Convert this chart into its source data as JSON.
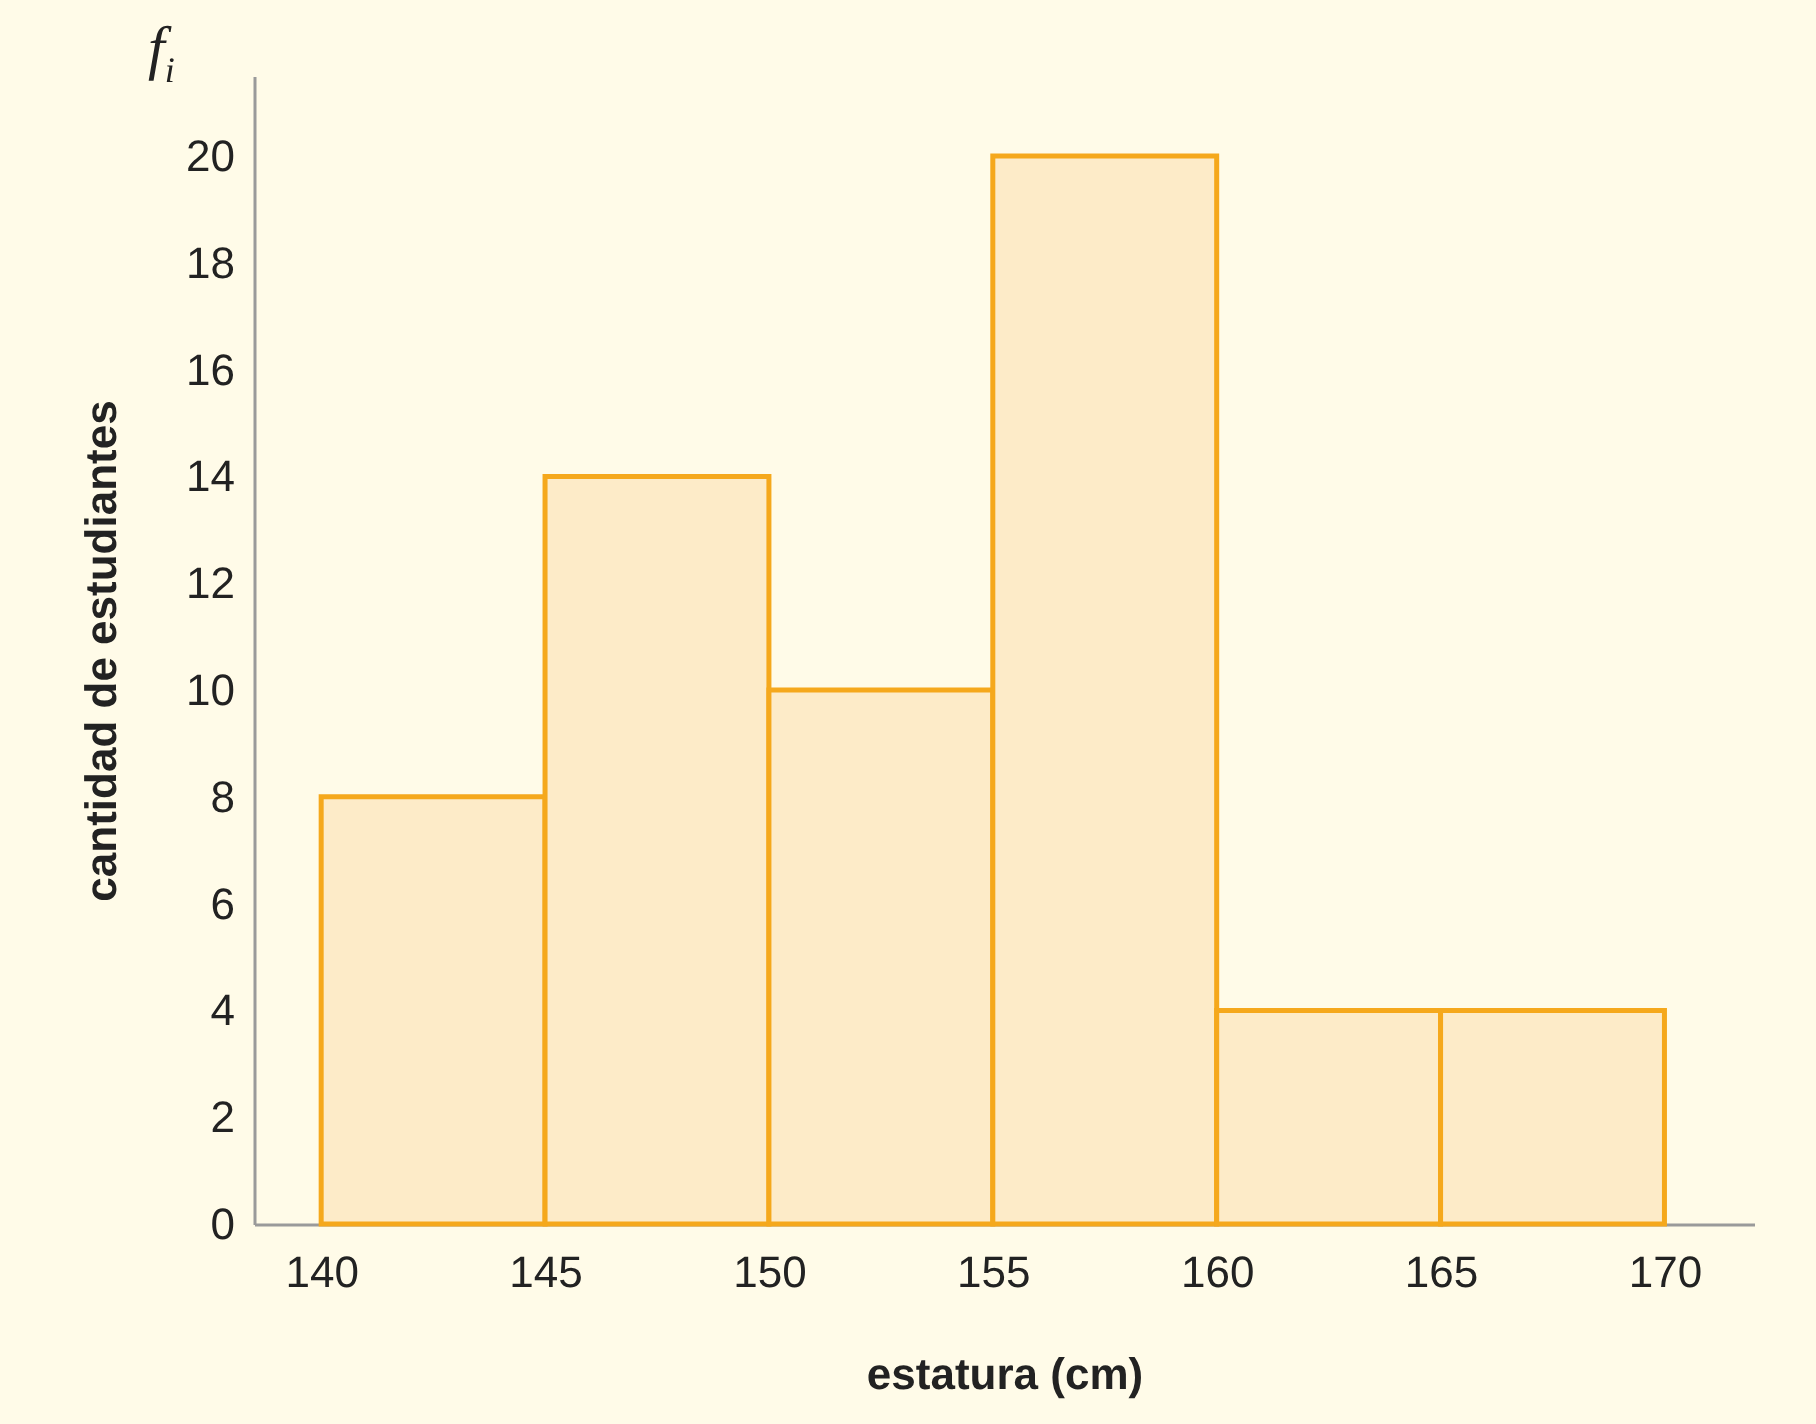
{
  "chart_data": {
    "type": "histogram",
    "xlabel": "estatura (cm)",
    "ylabel": "cantidad de estudiantes",
    "annotations": [
      "f$_{i}$"
    ],
    "bins": [
      140,
      145,
      150,
      155,
      160,
      165,
      170
    ],
    "values": [
      8,
      14,
      10,
      20,
      4,
      4
    ],
    "color": "#fdebc8",
    "xlim": [
      138.5,
      172
    ],
    "xticks": [
      140,
      145,
      150,
      155,
      160,
      165,
      170
    ],
    "ylim": [
      0,
      21.5
    ],
    "yticks": [
      0,
      2,
      4,
      6,
      8,
      10,
      12,
      14,
      16,
      18,
      20
    ],
    "grid": false
  }
}
